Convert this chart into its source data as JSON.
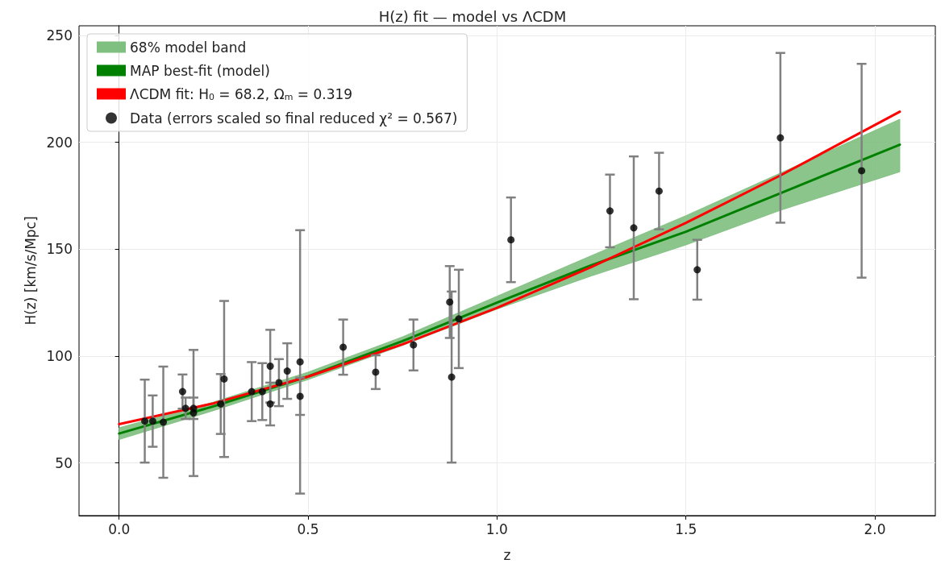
{
  "chart_data": {
    "type": "line",
    "title": "H(z) fit — model vs ΛCDM",
    "xlabel": "z",
    "ylabel": "H(z) [km/s/Mpc]",
    "xlim": [
      -0.106,
      2.16
    ],
    "ylim": [
      25.4,
      254.5
    ],
    "xticks": [
      {
        "value": 0,
        "label": "0.0"
      },
      {
        "value": 0.5,
        "label": "0.5"
      },
      {
        "value": 1,
        "label": "1.0"
      },
      {
        "value": 1.5,
        "label": "1.5"
      },
      {
        "value": 2,
        "label": "2.0"
      }
    ],
    "yticks": [
      50,
      100,
      150,
      200,
      250
    ],
    "grid": true,
    "legend": "top left",
    "line_style": "solid",
    "series": [
      {
        "type": "area",
        "name": "68% model band",
        "color": "#7fbf7f"
      },
      {
        "type": "line",
        "name": "MAP best-fit (model)",
        "color": "#008000",
        "x": [
          0,
          0.25,
          0.5,
          0.75,
          1.0,
          1.25,
          1.5,
          1.75,
          2.066
        ],
        "values": [
          63.8,
          76.5,
          90.5,
          107,
          125,
          142.5,
          158.2,
          176.2,
          198.9
        ],
        "lower": [
          61,
          74.5,
          89,
          105,
          122,
          137.5,
          152,
          168.2,
          186.2
        ],
        "upper": [
          66.5,
          78.5,
          92.5,
          109,
          128,
          147,
          165.7,
          185.6,
          210.8
        ]
      },
      {
        "type": "line",
        "name": "ΛCDM fit: H$_{0}$ = 68.2, Ω$_{m}$ = 0.319",
        "color": "#ff0000",
        "x": [
          0,
          0.25,
          0.5,
          0.75,
          1.0,
          1.25,
          1.5,
          1.75,
          2.066
        ],
        "values": [
          68.2,
          77.9,
          90.4,
          105.5,
          122.6,
          141.7,
          162.3,
          184.5,
          214.3
        ]
      },
      {
        "type": "scatter",
        "name": "Data (errors scaled so final reduced χ² = 0.567)",
        "color": "#000000",
        "marker": "circle",
        "x": [
          0.068,
          0.089,
          0.117,
          0.168,
          0.176,
          0.197,
          0.197,
          0.269,
          0.278,
          0.351,
          0.379,
          0.4,
          0.4,
          0.423,
          0.445,
          0.479,
          0.479,
          0.593,
          0.679,
          0.779,
          0.875,
          0.88,
          0.899,
          1.037,
          1.299,
          1.362,
          1.429,
          1.53,
          1.75,
          1.965
        ],
        "values": [
          69.6,
          69.6,
          69.1,
          83.4,
          75.6,
          75.6,
          73.4,
          77.6,
          89.3,
          83.4,
          83.4,
          95.3,
          77.6,
          87.6,
          93.0,
          97.3,
          81.2,
          104.2,
          92.5,
          105.2,
          125.3,
          90.2,
          117.4,
          154.4,
          167.9,
          160.0,
          177.2,
          140.4,
          202.1,
          186.7
        ],
        "errors": [
          19.4,
          12,
          26,
          8,
          5,
          5,
          29.5,
          14,
          36.5,
          13.8,
          13.3,
          17,
          10,
          11,
          13,
          61.6,
          8.7,
          12.9,
          7.9,
          11.9,
          16.8,
          40,
          23,
          19.8,
          17,
          33.4,
          17.9,
          14,
          39.7,
          50
        ]
      }
    ]
  }
}
